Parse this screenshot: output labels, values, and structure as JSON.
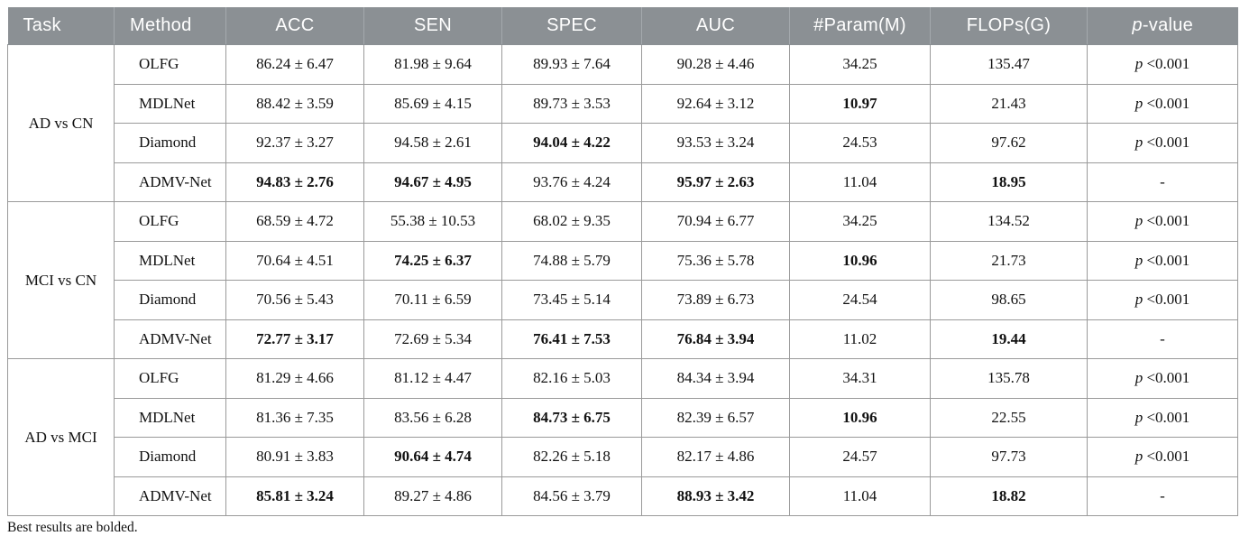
{
  "table": {
    "columns": [
      "Task",
      "Method",
      "ACC",
      "SEN",
      "SPEC",
      "AUC",
      "#Param(M)",
      "FLOPs(G)",
      "p-value"
    ],
    "footnote": "Best results are bolded.",
    "header_bg": "#8b9094",
    "groups": [
      {
        "task": "AD vs CN",
        "rows": [
          {
            "method": "OLFG",
            "values": [
              "86.24 ± 6.47",
              "81.98 ± 9.64",
              "89.93 ± 7.64",
              "90.28 ± 4.46",
              "34.25",
              "135.47"
            ],
            "p_value": "p <0.001",
            "bold": []
          },
          {
            "method": "MDLNet",
            "values": [
              "88.42 ± 3.59",
              "85.69 ± 4.15",
              "89.73 ± 3.53",
              "92.64 ± 3.12",
              "10.97",
              "21.43"
            ],
            "p_value": "p <0.001",
            "bold": [
              4
            ]
          },
          {
            "method": "Diamond",
            "values": [
              "92.37 ± 3.27",
              "94.58 ± 2.61",
              "94.04 ± 4.22",
              "93.53 ± 3.24",
              "24.53",
              "97.62"
            ],
            "p_value": "p <0.001",
            "bold": [
              2
            ]
          },
          {
            "method": "ADMV-Net",
            "values": [
              "94.83 ± 2.76",
              "94.67 ± 4.95",
              "93.76 ± 4.24",
              "95.97 ± 2.63",
              "11.04",
              "18.95"
            ],
            "p_value": "-",
            "bold": [
              0,
              1,
              3,
              5
            ]
          }
        ]
      },
      {
        "task": "MCI vs CN",
        "rows": [
          {
            "method": "OLFG",
            "values": [
              "68.59 ± 4.72",
              "55.38 ± 10.53",
              "68.02 ± 9.35",
              "70.94 ± 6.77",
              "34.25",
              "134.52"
            ],
            "p_value": "p <0.001",
            "bold": []
          },
          {
            "method": "MDLNet",
            "values": [
              "70.64 ± 4.51",
              "74.25 ± 6.37",
              "74.88 ± 5.79",
              "75.36 ± 5.78",
              "10.96",
              "21.73"
            ],
            "p_value": "p <0.001",
            "bold": [
              1,
              4
            ]
          },
          {
            "method": "Diamond",
            "values": [
              "70.56 ± 5.43",
              "70.11 ± 6.59",
              "73.45 ± 5.14",
              "73.89 ± 6.73",
              "24.54",
              "98.65"
            ],
            "p_value": "p <0.001",
            "bold": []
          },
          {
            "method": "ADMV-Net",
            "values": [
              "72.77 ± 3.17",
              "72.69 ± 5.34",
              "76.41 ± 7.53",
              "76.84 ± 3.94",
              "11.02",
              "19.44"
            ],
            "p_value": "-",
            "bold": [
              0,
              2,
              3,
              5
            ]
          }
        ]
      },
      {
        "task": "AD vs MCI",
        "rows": [
          {
            "method": "OLFG",
            "values": [
              "81.29 ± 4.66",
              "81.12 ± 4.47",
              "82.16 ± 5.03",
              "84.34 ± 3.94",
              "34.31",
              "135.78"
            ],
            "p_value": "p <0.001",
            "bold": []
          },
          {
            "method": "MDLNet",
            "values": [
              "81.36 ± 7.35",
              "83.56 ± 6.28",
              "84.73 ± 6.75",
              "82.39 ± 6.57",
              "10.96",
              "22.55"
            ],
            "p_value": "p <0.001",
            "bold": [
              2,
              4
            ]
          },
          {
            "method": "Diamond",
            "values": [
              "80.91 ± 3.83",
              "90.64 ± 4.74",
              "82.26 ± 5.18",
              "82.17 ± 4.86",
              "24.57",
              "97.73"
            ],
            "p_value": "p <0.001",
            "bold": [
              1
            ]
          },
          {
            "method": "ADMV-Net",
            "values": [
              "85.81 ± 3.24",
              "89.27 ± 4.86",
              "84.56 ± 3.79",
              "88.93 ± 3.42",
              "11.04",
              "18.82"
            ],
            "p_value": "-",
            "bold": [
              0,
              3,
              5
            ]
          }
        ]
      }
    ]
  }
}
